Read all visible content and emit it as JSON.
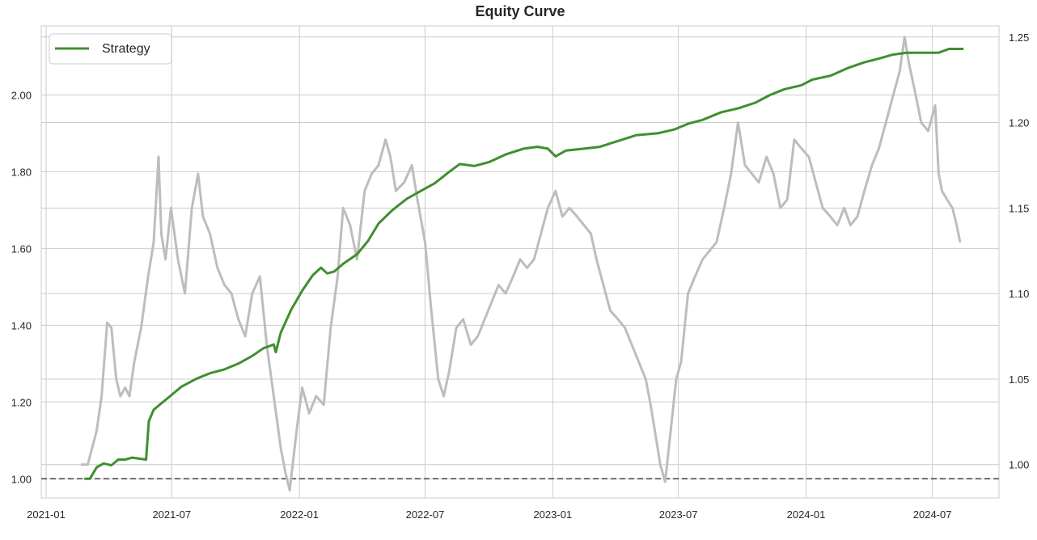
{
  "chart_data": {
    "type": "line",
    "title": "Equity Curve",
    "xlabel": "",
    "ylabel": "",
    "x_ticks": [
      "2021-01",
      "2021-07",
      "2022-01",
      "2022-07",
      "2023-01",
      "2023-07",
      "2024-01",
      "2024-07"
    ],
    "y_left_ticks": [
      "1.00",
      "1.20",
      "1.40",
      "1.60",
      "1.80",
      "2.00"
    ],
    "y_right_ticks": [
      "1.00",
      "1.05",
      "1.10",
      "1.15",
      "1.20",
      "1.25"
    ],
    "xlim": [
      "2020-12-25",
      "2024-10-05"
    ],
    "ylim_left": [
      0.95,
      2.18
    ],
    "ylim_right": [
      0.9805,
      1.2565
    ],
    "grid": true,
    "legend_position": "top-left",
    "baseline": 1.0,
    "colors": {
      "strategy": "#3f8f2f",
      "benchmark": "#bdbdbd",
      "baseline": "#404040",
      "grid": "#cccccc"
    },
    "series": [
      {
        "name": "Strategy",
        "axis": "left",
        "points": [
          [
            "2021-02-25",
            1.0
          ],
          [
            "2021-03-05",
            1.0
          ],
          [
            "2021-03-15",
            1.03
          ],
          [
            "2021-03-25",
            1.04
          ],
          [
            "2021-04-05",
            1.035
          ],
          [
            "2021-04-15",
            1.05
          ],
          [
            "2021-04-25",
            1.05
          ],
          [
            "2021-05-05",
            1.055
          ],
          [
            "2021-05-25",
            1.05
          ],
          [
            "2021-05-29",
            1.15
          ],
          [
            "2021-06-05",
            1.18
          ],
          [
            "2021-06-25",
            1.21
          ],
          [
            "2021-07-15",
            1.24
          ],
          [
            "2021-08-05",
            1.26
          ],
          [
            "2021-08-25",
            1.275
          ],
          [
            "2021-09-15",
            1.285
          ],
          [
            "2021-10-05",
            1.3
          ],
          [
            "2021-10-25",
            1.32
          ],
          [
            "2021-11-10",
            1.34
          ],
          [
            "2021-11-25",
            1.35
          ],
          [
            "2021-11-28",
            1.33
          ],
          [
            "2021-12-05",
            1.38
          ],
          [
            "2021-12-20",
            1.44
          ],
          [
            "2022-01-05",
            1.49
          ],
          [
            "2022-01-20",
            1.53
          ],
          [
            "2022-02-01",
            1.55
          ],
          [
            "2022-02-10",
            1.535
          ],
          [
            "2022-02-20",
            1.54
          ],
          [
            "2022-03-05",
            1.56
          ],
          [
            "2022-03-25",
            1.585
          ],
          [
            "2022-04-10",
            1.62
          ],
          [
            "2022-04-25",
            1.665
          ],
          [
            "2022-05-15",
            1.7
          ],
          [
            "2022-06-05",
            1.73
          ],
          [
            "2022-06-25",
            1.75
          ],
          [
            "2022-07-15",
            1.77
          ],
          [
            "2022-08-05",
            1.8
          ],
          [
            "2022-08-20",
            1.82
          ],
          [
            "2022-09-10",
            1.815
          ],
          [
            "2022-10-01",
            1.825
          ],
          [
            "2022-10-25",
            1.845
          ],
          [
            "2022-11-20",
            1.86
          ],
          [
            "2022-12-10",
            1.865
          ],
          [
            "2022-12-25",
            1.86
          ],
          [
            "2023-01-05",
            1.84
          ],
          [
            "2023-01-20",
            1.855
          ],
          [
            "2023-02-15",
            1.86
          ],
          [
            "2023-03-10",
            1.865
          ],
          [
            "2023-04-05",
            1.88
          ],
          [
            "2023-05-01",
            1.895
          ],
          [
            "2023-06-01",
            1.9
          ],
          [
            "2023-06-25",
            1.91
          ],
          [
            "2023-07-15",
            1.925
          ],
          [
            "2023-08-05",
            1.935
          ],
          [
            "2023-09-01",
            1.955
          ],
          [
            "2023-09-25",
            1.965
          ],
          [
            "2023-10-20",
            1.98
          ],
          [
            "2023-11-10",
            2.0
          ],
          [
            "2023-12-01",
            2.015
          ],
          [
            "2023-12-25",
            2.025
          ],
          [
            "2024-01-10",
            2.04
          ],
          [
            "2024-02-05",
            2.05
          ],
          [
            "2024-03-01",
            2.07
          ],
          [
            "2024-03-25",
            2.085
          ],
          [
            "2024-04-15",
            2.095
          ],
          [
            "2024-05-05",
            2.105
          ],
          [
            "2024-05-25",
            2.11
          ],
          [
            "2024-06-20",
            2.11
          ],
          [
            "2024-07-10",
            2.11
          ],
          [
            "2024-07-25",
            2.12
          ],
          [
            "2024-08-15",
            2.12
          ]
        ]
      },
      {
        "axis": "right",
        "points": [
          [
            "2021-02-20",
            1.0
          ],
          [
            "2021-03-02",
            1.0
          ],
          [
            "2021-03-15",
            1.02
          ],
          [
            "2021-03-22",
            1.04
          ],
          [
            "2021-03-30",
            1.083
          ],
          [
            "2021-04-05",
            1.08
          ],
          [
            "2021-04-12",
            1.05
          ],
          [
            "2021-04-18",
            1.04
          ],
          [
            "2021-04-25",
            1.045
          ],
          [
            "2021-05-01",
            1.04
          ],
          [
            "2021-05-08",
            1.06
          ],
          [
            "2021-05-18",
            1.08
          ],
          [
            "2021-05-28",
            1.11
          ],
          [
            "2021-06-05",
            1.13
          ],
          [
            "2021-06-12",
            1.18
          ],
          [
            "2021-06-16",
            1.135
          ],
          [
            "2021-06-22",
            1.12
          ],
          [
            "2021-06-30",
            1.15
          ],
          [
            "2021-07-10",
            1.12
          ],
          [
            "2021-07-20",
            1.1
          ],
          [
            "2021-07-30",
            1.15
          ],
          [
            "2021-08-08",
            1.17
          ],
          [
            "2021-08-15",
            1.145
          ],
          [
            "2021-08-25",
            1.135
          ],
          [
            "2021-09-05",
            1.115
          ],
          [
            "2021-09-15",
            1.105
          ],
          [
            "2021-09-25",
            1.1
          ],
          [
            "2021-10-05",
            1.085
          ],
          [
            "2021-10-15",
            1.075
          ],
          [
            "2021-10-25",
            1.1
          ],
          [
            "2021-11-05",
            1.11
          ],
          [
            "2021-11-15",
            1.07
          ],
          [
            "2021-11-25",
            1.04
          ],
          [
            "2021-12-05",
            1.01
          ],
          [
            "2021-12-12",
            0.995
          ],
          [
            "2021-12-18",
            0.985
          ],
          [
            "2021-12-28",
            1.02
          ],
          [
            "2022-01-05",
            1.045
          ],
          [
            "2022-01-15",
            1.03
          ],
          [
            "2022-01-25",
            1.04
          ],
          [
            "2022-02-05",
            1.035
          ],
          [
            "2022-02-15",
            1.08
          ],
          [
            "2022-02-25",
            1.11
          ],
          [
            "2022-03-05",
            1.15
          ],
          [
            "2022-03-15",
            1.14
          ],
          [
            "2022-03-25",
            1.12
          ],
          [
            "2022-04-05",
            1.16
          ],
          [
            "2022-04-15",
            1.17
          ],
          [
            "2022-04-25",
            1.175
          ],
          [
            "2022-05-05",
            1.19
          ],
          [
            "2022-05-12",
            1.18
          ],
          [
            "2022-05-20",
            1.16
          ],
          [
            "2022-06-01",
            1.165
          ],
          [
            "2022-06-12",
            1.175
          ],
          [
            "2022-06-20",
            1.155
          ],
          [
            "2022-07-01",
            1.13
          ],
          [
            "2022-07-10",
            1.09
          ],
          [
            "2022-07-20",
            1.05
          ],
          [
            "2022-07-28",
            1.04
          ],
          [
            "2022-08-05",
            1.055
          ],
          [
            "2022-08-15",
            1.08
          ],
          [
            "2022-08-25",
            1.085
          ],
          [
            "2022-09-05",
            1.07
          ],
          [
            "2022-09-15",
            1.075
          ],
          [
            "2022-09-25",
            1.085
          ],
          [
            "2022-10-05",
            1.095
          ],
          [
            "2022-10-15",
            1.105
          ],
          [
            "2022-10-25",
            1.1
          ],
          [
            "2022-11-05",
            1.11
          ],
          [
            "2022-11-15",
            1.12
          ],
          [
            "2022-11-25",
            1.115
          ],
          [
            "2022-12-05",
            1.12
          ],
          [
            "2022-12-15",
            1.135
          ],
          [
            "2022-12-25",
            1.15
          ],
          [
            "2023-01-05",
            1.16
          ],
          [
            "2023-01-15",
            1.145
          ],
          [
            "2023-01-25",
            1.15
          ],
          [
            "2023-02-05",
            1.145
          ],
          [
            "2023-02-15",
            1.14
          ],
          [
            "2023-02-25",
            1.135
          ],
          [
            "2023-03-05",
            1.12
          ],
          [
            "2023-03-15",
            1.105
          ],
          [
            "2023-03-25",
            1.09
          ],
          [
            "2023-04-05",
            1.085
          ],
          [
            "2023-04-15",
            1.08
          ],
          [
            "2023-04-25",
            1.07
          ],
          [
            "2023-05-05",
            1.06
          ],
          [
            "2023-05-15",
            1.05
          ],
          [
            "2023-05-22",
            1.035
          ],
          [
            "2023-05-30",
            1.015
          ],
          [
            "2023-06-05",
            1.0
          ],
          [
            "2023-06-12",
            0.99
          ],
          [
            "2023-06-20",
            1.02
          ],
          [
            "2023-06-28",
            1.05
          ],
          [
            "2023-07-05",
            1.06
          ],
          [
            "2023-07-15",
            1.1
          ],
          [
            "2023-07-25",
            1.11
          ],
          [
            "2023-08-05",
            1.12
          ],
          [
            "2023-08-15",
            1.125
          ],
          [
            "2023-08-25",
            1.13
          ],
          [
            "2023-09-05",
            1.15
          ],
          [
            "2023-09-15",
            1.17
          ],
          [
            "2023-09-25",
            1.2
          ],
          [
            "2023-10-05",
            1.175
          ],
          [
            "2023-10-15",
            1.17
          ],
          [
            "2023-10-25",
            1.165
          ],
          [
            "2023-11-05",
            1.18
          ],
          [
            "2023-11-15",
            1.17
          ],
          [
            "2023-11-25",
            1.15
          ],
          [
            "2023-12-05",
            1.155
          ],
          [
            "2023-12-15",
            1.19
          ],
          [
            "2023-12-25",
            1.185
          ],
          [
            "2024-01-05",
            1.18
          ],
          [
            "2024-01-15",
            1.165
          ],
          [
            "2024-01-25",
            1.15
          ],
          [
            "2024-02-05",
            1.145
          ],
          [
            "2024-02-15",
            1.14
          ],
          [
            "2024-02-25",
            1.15
          ],
          [
            "2024-03-05",
            1.14
          ],
          [
            "2024-03-15",
            1.145
          ],
          [
            "2024-03-25",
            1.16
          ],
          [
            "2024-04-05",
            1.175
          ],
          [
            "2024-04-15",
            1.185
          ],
          [
            "2024-04-25",
            1.2
          ],
          [
            "2024-05-05",
            1.215
          ],
          [
            "2024-05-15",
            1.23
          ],
          [
            "2024-05-22",
            1.25
          ],
          [
            "2024-05-28",
            1.235
          ],
          [
            "2024-06-05",
            1.22
          ],
          [
            "2024-06-15",
            1.2
          ],
          [
            "2024-06-25",
            1.195
          ],
          [
            "2024-07-05",
            1.21
          ],
          [
            "2024-07-10",
            1.17
          ],
          [
            "2024-07-15",
            1.16
          ],
          [
            "2024-07-22",
            1.155
          ],
          [
            "2024-07-30",
            1.15
          ],
          [
            "2024-08-05",
            1.14
          ],
          [
            "2024-08-10",
            1.13
          ]
        ]
      }
    ]
  }
}
